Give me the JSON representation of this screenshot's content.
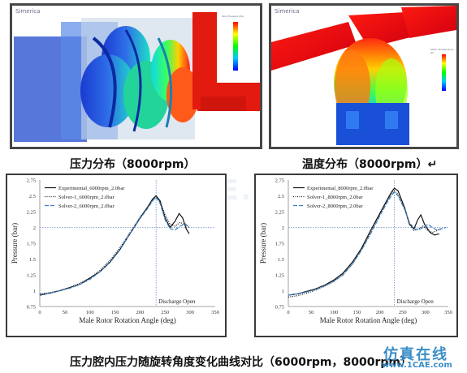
{
  "top_left_panel": {
    "brand": "Simerica",
    "caption": "压力分布（8000rpm）",
    "colorbar_title": "Abs. Pressure (Pa)"
  },
  "top_right_panel": {
    "brand": "Simerica",
    "caption": "温度分布（8000rpm）↵",
    "colorbar_title": "Static Temperature (K)"
  },
  "bottom_caption": "压力腔内压力随旋转角度变化曲线对比（6000rpm，8000rpm）",
  "watermark": {
    "site_cn": "仿真在线",
    "site_url": "www.1CAE.com",
    "center": "1CAE.COM"
  },
  "colors": {
    "frame": "#474747",
    "experimental": "#111111",
    "solver1": "#222222",
    "solver2": "#3b7fc4",
    "marker": "#6f8fc8"
  },
  "chart_data": [
    {
      "type": "line",
      "xlabel": "Male Rotor Rotation Angle (deg)",
      "ylabel": "Pressure (bar)",
      "xlim": [
        0,
        350
      ],
      "ylim": [
        0.75,
        2.75
      ],
      "xticks": [
        0,
        50,
        100,
        150,
        200,
        250,
        300,
        350
      ],
      "yticks": [
        0.75,
        1,
        1.25,
        1.5,
        1.75,
        2,
        2.25,
        2.5,
        2.75
      ],
      "legend_position": "top-left",
      "annotation": "Discharge Open",
      "vline_x": 232,
      "hline_y": 2.0,
      "series": [
        {
          "name": "Experimental_6000rpm_2.0bar",
          "style": "solid",
          "x": [
            0,
            20,
            40,
            60,
            80,
            100,
            120,
            140,
            160,
            180,
            200,
            215,
            225,
            232,
            240,
            250,
            260,
            270,
            278,
            285,
            292,
            298
          ],
          "y": [
            0.93,
            0.96,
            1.0,
            1.05,
            1.1,
            1.2,
            1.3,
            1.45,
            1.65,
            1.9,
            2.15,
            2.32,
            2.45,
            2.5,
            2.42,
            2.15,
            2.0,
            2.1,
            2.22,
            2.15,
            1.98,
            1.9
          ]
        },
        {
          "name": "Solver-1_6000rpm_2.0bar",
          "style": "dotted",
          "x": [
            0,
            20,
            40,
            60,
            80,
            100,
            120,
            140,
            160,
            180,
            200,
            215,
            225,
            232,
            240,
            250,
            260,
            270,
            280,
            290,
            298
          ],
          "y": [
            0.95,
            0.97,
            1.0,
            1.05,
            1.12,
            1.2,
            1.32,
            1.48,
            1.68,
            1.92,
            2.16,
            2.32,
            2.43,
            2.47,
            2.4,
            2.2,
            2.05,
            2.02,
            2.08,
            2.04,
            2.0
          ]
        },
        {
          "name": "Solver-2_6000rpm_2.0bar",
          "style": "dashed",
          "x": [
            0,
            20,
            40,
            60,
            80,
            100,
            120,
            140,
            160,
            180,
            200,
            215,
            225,
            232,
            240,
            250,
            260,
            270,
            280,
            290,
            298
          ],
          "y": [
            0.94,
            0.96,
            1.0,
            1.04,
            1.1,
            1.18,
            1.3,
            1.46,
            1.66,
            1.9,
            2.14,
            2.3,
            2.42,
            2.48,
            2.38,
            2.12,
            1.98,
            1.96,
            2.02,
            2.06,
            2.0
          ]
        }
      ]
    },
    {
      "type": "line",
      "xlabel": "Male Rotor Rotation Angle (deg)",
      "ylabel": "Pressure (bar)",
      "xlim": [
        0,
        350
      ],
      "ylim": [
        0.75,
        2.75
      ],
      "xticks": [
        0,
        50,
        100,
        150,
        200,
        250,
        300,
        350
      ],
      "yticks": [
        0.75,
        1,
        1.25,
        1.5,
        1.75,
        2,
        2.25,
        2.5,
        2.75
      ],
      "legend_position": "top-left",
      "annotation": "Discharge Open",
      "vline_x": 232,
      "hline_y": 2.0,
      "series": [
        {
          "name": "Experimental_8000rpm_2.0bar",
          "style": "solid",
          "x": [
            0,
            20,
            40,
            60,
            80,
            100,
            120,
            140,
            160,
            180,
            200,
            215,
            225,
            232,
            240,
            255,
            265,
            275,
            283,
            290,
            298,
            310,
            320,
            330
          ],
          "y": [
            0.93,
            0.95,
            0.99,
            1.03,
            1.09,
            1.17,
            1.28,
            1.45,
            1.67,
            1.95,
            2.22,
            2.42,
            2.55,
            2.62,
            2.58,
            2.3,
            2.05,
            1.98,
            2.12,
            2.2,
            2.05,
            1.92,
            1.88,
            1.9
          ]
        },
        {
          "name": "Solver-1_8000rpm_2.0bar",
          "style": "dotted",
          "x": [
            0,
            20,
            40,
            60,
            80,
            100,
            120,
            140,
            160,
            180,
            200,
            215,
            225,
            232,
            240,
            255,
            265,
            275,
            285,
            295,
            305,
            315,
            325,
            335
          ],
          "y": [
            0.9,
            0.92,
            0.96,
            1.01,
            1.07,
            1.15,
            1.26,
            1.42,
            1.64,
            1.92,
            2.2,
            2.4,
            2.52,
            2.58,
            2.52,
            2.28,
            2.05,
            1.95,
            1.98,
            2.02,
            1.95,
            1.92,
            1.95,
            1.98
          ]
        },
        {
          "name": "Solver-2_8000rpm_2.0bar",
          "style": "dashed",
          "x": [
            0,
            20,
            40,
            60,
            80,
            100,
            120,
            140,
            160,
            180,
            200,
            215,
            225,
            232,
            240,
            255,
            265,
            275,
            285,
            295,
            305,
            315,
            325,
            335,
            345
          ],
          "y": [
            0.93,
            0.95,
            0.98,
            1.02,
            1.08,
            1.15,
            1.25,
            1.42,
            1.64,
            1.9,
            2.18,
            2.38,
            2.5,
            2.56,
            2.5,
            2.28,
            2.08,
            1.98,
            1.96,
            2.0,
            2.05,
            2.0,
            1.96,
            1.98,
            2.0
          ]
        }
      ]
    }
  ]
}
